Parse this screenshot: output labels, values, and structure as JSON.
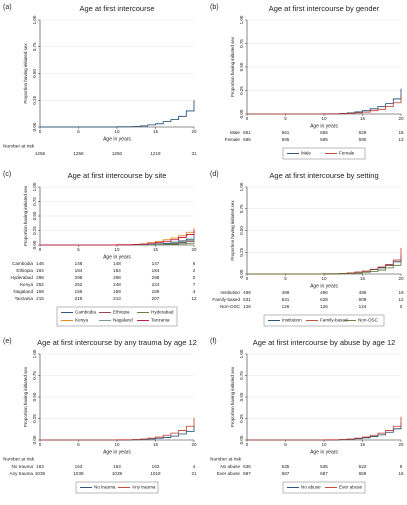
{
  "chart_data": [
    {
      "type": "line",
      "step": true,
      "label": "(a)",
      "title": "Age at first intercourse",
      "xlabel": "Age in years",
      "ylabel": "Proportion having initiated sex",
      "xlim": [
        0,
        20
      ],
      "ylim": [
        0,
        1
      ],
      "xticks": [
        0,
        5,
        10,
        15,
        20
      ],
      "yticks": [
        {
          "value": 0,
          "label": "0.00"
        },
        {
          "value": 0.25,
          "label": "0.25"
        },
        {
          "value": 0.5,
          "label": "0.50"
        },
        {
          "value": 0.75,
          "label": "0.75"
        },
        {
          "value": 1,
          "label": "1.00"
        }
      ],
      "grid": true,
      "x": [
        0,
        10,
        12,
        13,
        14,
        15,
        16,
        17,
        18,
        19,
        20
      ],
      "series": [
        {
          "color": "#1a476f",
          "values": [
            0,
            0.002,
            0.005,
            0.01,
            0.02,
            0.03,
            0.05,
            0.07,
            0.1,
            0.15,
            0.25
          ]
        }
      ],
      "risk_title": "Number at risk",
      "risk_rows": [
        {
          "values": [
            1256,
            1256,
            1250,
            1219,
            31
          ]
        }
      ]
    },
    {
      "type": "line",
      "step": true,
      "label": "(b)",
      "title": "Age at first intercourse by gender",
      "xlabel": "Age in years",
      "ylabel": "Proportion having initiated sex",
      "xlim": [
        0,
        20
      ],
      "ylim": [
        0,
        1
      ],
      "xticks": [
        0,
        5,
        10,
        15,
        20
      ],
      "yticks": [
        {
          "value": 0,
          "label": "0.00"
        },
        {
          "value": 0.25,
          "label": "0.25"
        },
        {
          "value": 0.5,
          "label": "0.50"
        },
        {
          "value": 0.75,
          "label": "0.75"
        },
        {
          "value": 1,
          "label": "1.00"
        }
      ],
      "grid": true,
      "x": [
        0,
        10,
        12,
        13,
        14,
        15,
        16,
        17,
        18,
        19,
        20
      ],
      "series": [
        {
          "name": "Male",
          "color": "#1a476f",
          "values": [
            0,
            0.002,
            0.006,
            0.012,
            0.022,
            0.035,
            0.055,
            0.08,
            0.11,
            0.16,
            0.27
          ]
        },
        {
          "name": "Female",
          "color": "#c0392b",
          "values": [
            0,
            0.001,
            0.003,
            0.006,
            0.012,
            0.02,
            0.035,
            0.05,
            0.08,
            0.12,
            0.2
          ]
        }
      ],
      "risk_rows": [
        {
          "name": "Male",
          "values": [
            661,
            661,
            655,
            629,
            18
          ]
        },
        {
          "name": "Female",
          "values": [
            595,
            595,
            595,
            590,
            13
          ]
        }
      ]
    },
    {
      "type": "line",
      "step": true,
      "label": "(c)",
      "title": "Age at first intercourse by site",
      "xlabel": "Age in years",
      "ylabel": "Proportion having initiated sex",
      "xlim": [
        0,
        20
      ],
      "ylim": [
        0,
        1
      ],
      "xticks": [
        0,
        5,
        10,
        15,
        20
      ],
      "yticks": [
        {
          "value": 0,
          "label": "0.00"
        },
        {
          "value": 0.25,
          "label": "0.25"
        },
        {
          "value": 0.5,
          "label": "0.50"
        },
        {
          "value": 0.75,
          "label": "0.75"
        },
        {
          "value": 1,
          "label": "1.00"
        }
      ],
      "grid": true,
      "x": [
        0,
        10,
        12,
        13,
        14,
        15,
        16,
        17,
        18,
        19,
        20
      ],
      "series": [
        {
          "name": "Cambodia",
          "color": "#1a476f",
          "values": [
            0,
            0,
            0.002,
            0.005,
            0.01,
            0.02,
            0.03,
            0.05,
            0.07,
            0.1,
            0.18
          ]
        },
        {
          "name": "Ethiopia",
          "color": "#90353b",
          "values": [
            0,
            0,
            0,
            0.003,
            0.006,
            0.01,
            0.015,
            0.025,
            0.04,
            0.06,
            0.1
          ]
        },
        {
          "name": "Hyderabad",
          "color": "#55752f",
          "values": [
            0,
            0,
            0,
            0,
            0.002,
            0.004,
            0.006,
            0.01,
            0.02,
            0.03,
            0.05
          ]
        },
        {
          "name": "Kenya",
          "color": "#e37e00",
          "values": [
            0,
            0.004,
            0.01,
            0.02,
            0.04,
            0.06,
            0.09,
            0.12,
            0.16,
            0.22,
            0.3
          ]
        },
        {
          "name": "Nagaland",
          "color": "#6e8e84",
          "values": [
            0,
            0,
            0.001,
            0.003,
            0.006,
            0.01,
            0.02,
            0.03,
            0.05,
            0.08,
            0.14
          ]
        },
        {
          "name": "Tanzania",
          "color": "#c10534",
          "values": [
            0,
            0.003,
            0.008,
            0.015,
            0.03,
            0.045,
            0.065,
            0.09,
            0.13,
            0.18,
            0.26
          ]
        }
      ],
      "risk_rows": [
        {
          "name": "Cambodia",
          "values": [
            148,
            148,
            148,
            147,
            6
          ]
        },
        {
          "name": "Ethiopia",
          "values": [
            184,
            184,
            184,
            184,
            2
          ]
        },
        {
          "name": "Hyderabad",
          "values": [
            298,
            298,
            298,
            298,
            0
          ]
        },
        {
          "name": "Kenya",
          "values": [
            252,
            252,
            248,
            224,
            7
          ]
        },
        {
          "name": "Nagaland",
          "values": [
            159,
            159,
            159,
            159,
            4
          ]
        },
        {
          "name": "Tanzania",
          "values": [
            215,
            215,
            213,
            207,
            12
          ]
        }
      ]
    },
    {
      "type": "line",
      "step": true,
      "label": "(d)",
      "title": "Age at first intercourse by setting",
      "xlabel": "Age in years",
      "ylabel": "Proportion having initiated sex",
      "xlim": [
        0,
        20
      ],
      "ylim": [
        0,
        1
      ],
      "xticks": [
        0,
        5,
        10,
        15,
        20
      ],
      "yticks": [
        {
          "value": 0,
          "label": "0.00"
        },
        {
          "value": 0.25,
          "label": "0.25"
        },
        {
          "value": 0.5,
          "label": "0.50"
        },
        {
          "value": 0.75,
          "label": "0.75"
        },
        {
          "value": 1,
          "label": "1.00"
        }
      ],
      "grid": true,
      "x": [
        0,
        10,
        12,
        13,
        14,
        15,
        16,
        17,
        18,
        19,
        20
      ],
      "series": [
        {
          "name": "Institution",
          "color": "#1a476f",
          "values": [
            0,
            0.002,
            0.005,
            0.01,
            0.02,
            0.03,
            0.05,
            0.07,
            0.1,
            0.14,
            0.22
          ]
        },
        {
          "name": "Family-based",
          "color": "#c0392b",
          "values": [
            0,
            0.002,
            0.006,
            0.012,
            0.022,
            0.034,
            0.055,
            0.08,
            0.11,
            0.16,
            0.3
          ]
        },
        {
          "name": "Non-OSC",
          "color": "#55752f",
          "values": [
            0,
            0,
            0.003,
            0.006,
            0.01,
            0.02,
            0.03,
            0.045,
            0.07,
            0.1,
            0.15
          ]
        }
      ],
      "risk_rows": [
        {
          "name": "Institution",
          "values": [
            499,
            499,
            496,
            486,
            19
          ]
        },
        {
          "name": "Family-based",
          "values": [
            631,
            631,
            628,
            609,
            12
          ]
        },
        {
          "name": "Non-OSC",
          "values": [
            126,
            126,
            126,
            124,
            0
          ]
        }
      ]
    },
    {
      "type": "line",
      "step": true,
      "label": "(e)",
      "title": "Age at first intercourse by any trauma by age 12",
      "xlabel": "Age in years",
      "ylabel": "Proportion having initiated sex",
      "xlim": [
        0,
        20
      ],
      "ylim": [
        0,
        1
      ],
      "xticks": [
        0,
        5,
        10,
        15,
        20
      ],
      "yticks": [
        {
          "value": 0,
          "label": "0.00"
        },
        {
          "value": 0.25,
          "label": "0.25"
        },
        {
          "value": 0.5,
          "label": "0.50"
        },
        {
          "value": 0.75,
          "label": "0.75"
        },
        {
          "value": 1,
          "label": "1.00"
        }
      ],
      "grid": true,
      "x": [
        0,
        10,
        12,
        13,
        14,
        15,
        16,
        17,
        18,
        19,
        20
      ],
      "series": [
        {
          "name": "No trauma",
          "color": "#1a476f",
          "values": [
            0,
            0,
            0.003,
            0.006,
            0.012,
            0.02,
            0.03,
            0.045,
            0.07,
            0.1,
            0.17
          ]
        },
        {
          "name": "Any trauma",
          "color": "#c0392b",
          "values": [
            0,
            0.002,
            0.006,
            0.012,
            0.022,
            0.034,
            0.055,
            0.08,
            0.11,
            0.16,
            0.26
          ]
        }
      ],
      "risk_title": "Number at risk",
      "risk_rows": [
        {
          "name": "No trauma",
          "values": [
            163,
            163,
            163,
            163,
            4
          ]
        },
        {
          "name": "Any trauma",
          "values": [
            1039,
            1039,
            1039,
            1018,
            21
          ]
        }
      ]
    },
    {
      "type": "line",
      "step": true,
      "label": "(f)",
      "title": "Age at first intercourse by abuse by age 12",
      "xlabel": "Age in years",
      "ylabel": "Proportion having initiated sex",
      "xlim": [
        0,
        20
      ],
      "ylim": [
        0,
        1
      ],
      "xticks": [
        0,
        5,
        10,
        15,
        20
      ],
      "yticks": [
        {
          "value": 0,
          "label": "0.00"
        },
        {
          "value": 0.25,
          "label": "0.25"
        },
        {
          "value": 0.5,
          "label": "0.50"
        },
        {
          "value": 0.75,
          "label": "0.75"
        },
        {
          "value": 1,
          "label": "1.00"
        }
      ],
      "grid": true,
      "x": [
        0,
        10,
        12,
        13,
        14,
        15,
        16,
        17,
        18,
        19,
        20
      ],
      "series": [
        {
          "name": "No abuse",
          "color": "#1a476f",
          "values": [
            0,
            0.001,
            0.004,
            0.008,
            0.015,
            0.025,
            0.04,
            0.06,
            0.09,
            0.13,
            0.2
          ]
        },
        {
          "name": "Ever abuse",
          "color": "#c0392b",
          "values": [
            0,
            0.002,
            0.006,
            0.012,
            0.022,
            0.034,
            0.055,
            0.08,
            0.11,
            0.16,
            0.27
          ]
        }
      ],
      "risk_title": "Number at risk",
      "risk_rows": [
        {
          "name": "No abuse",
          "values": [
            535,
            535,
            535,
            522,
            9
          ]
        },
        {
          "name": "Ever abuse",
          "values": [
            687,
            687,
            687,
            659,
            16
          ]
        }
      ]
    }
  ]
}
